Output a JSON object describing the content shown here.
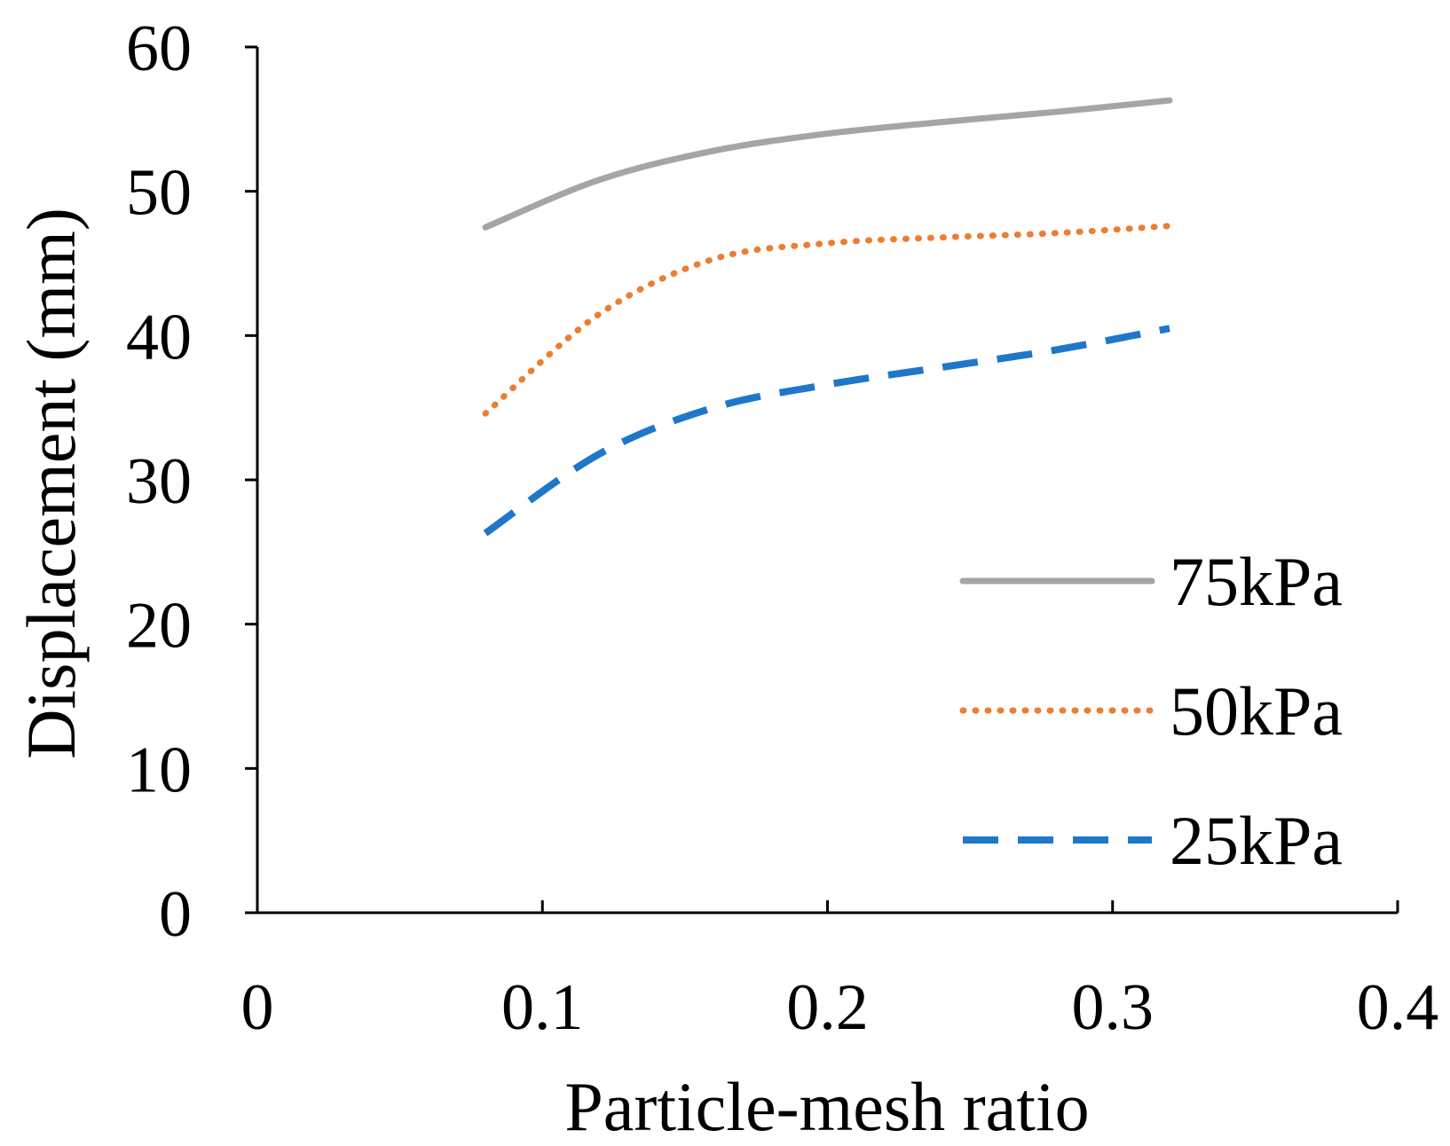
{
  "chart_data": {
    "type": "line",
    "title": "",
    "xlabel": "Particle-mesh ratio",
    "ylabel": "Displacement (mm)",
    "xlim": [
      0,
      0.4
    ],
    "ylim": [
      0,
      60
    ],
    "xticks": [
      0,
      0.1,
      0.2,
      0.3,
      0.4
    ],
    "xtick_labels": [
      "0",
      "0.1",
      "0.2",
      "0.3",
      "0.4"
    ],
    "yticks": [
      0,
      10,
      20,
      30,
      40,
      50,
      60
    ],
    "ytick_labels": [
      "0",
      "10",
      "20",
      "30",
      "40",
      "50",
      "60"
    ],
    "grid": false,
    "legend_position": "bottom-right",
    "series": [
      {
        "name": "75kPa",
        "color": "#a5a5a5",
        "style": "solid",
        "x": [
          0.08,
          0.12,
          0.16,
          0.2,
          0.24,
          0.28,
          0.32
        ],
        "values": [
          47.5,
          50.8,
          52.8,
          54.0,
          54.8,
          55.5,
          56.3
        ]
      },
      {
        "name": "50kPa",
        "color": "#ed7d31",
        "style": "dotted",
        "x": [
          0.08,
          0.12,
          0.16,
          0.2,
          0.24,
          0.28,
          0.32
        ],
        "values": [
          34.6,
          41.5,
          45.3,
          46.4,
          46.8,
          47.1,
          47.6
        ]
      },
      {
        "name": "25kPa",
        "color": "#1f77c9",
        "style": "dashed",
        "x": [
          0.08,
          0.12,
          0.16,
          0.2,
          0.24,
          0.28,
          0.32
        ],
        "values": [
          26.3,
          31.8,
          35.0,
          36.6,
          37.8,
          39.0,
          40.5
        ]
      }
    ]
  }
}
